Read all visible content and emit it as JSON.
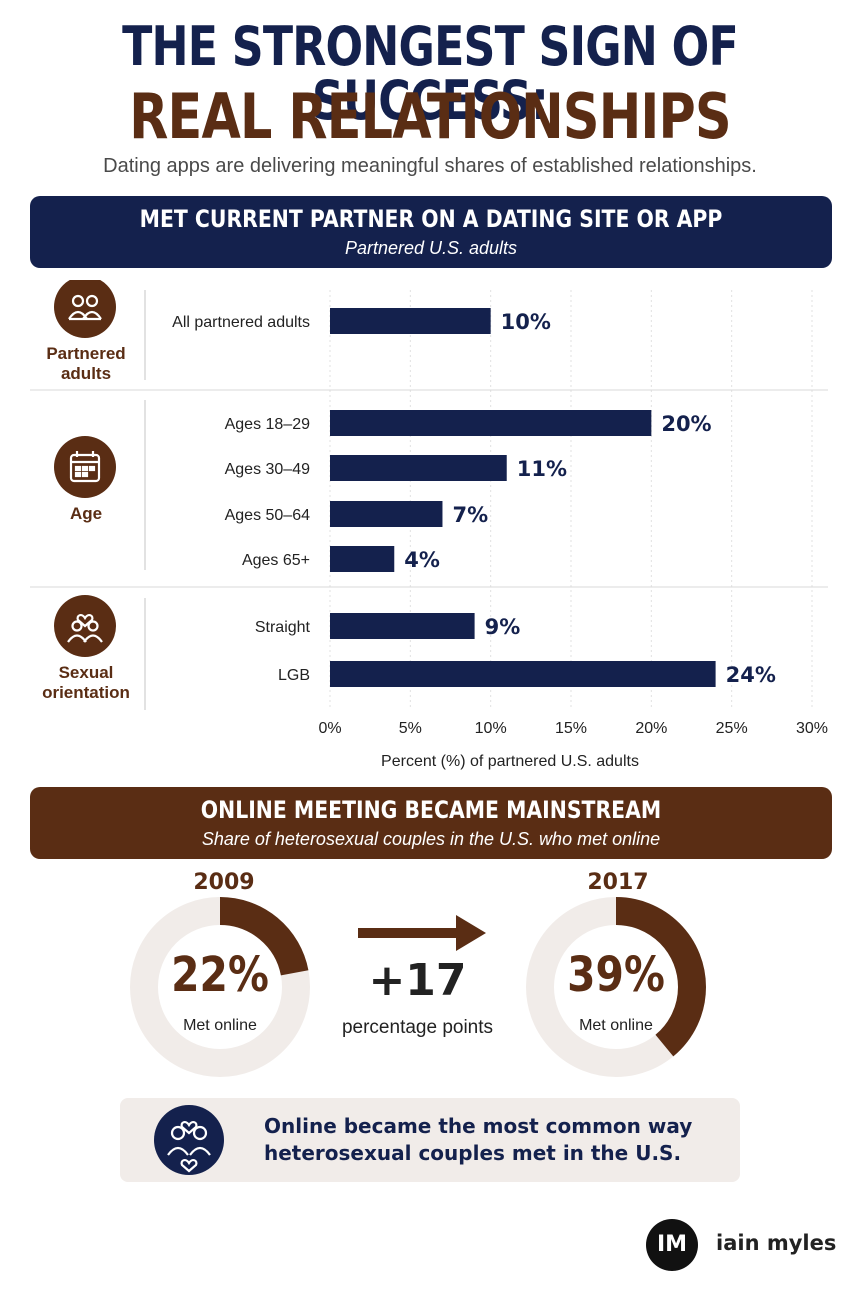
{
  "header": {
    "title_line1": "THE STRONGEST SIGN OF SUCCESS:",
    "title_line2": "REAL RELATIONSHIPS",
    "subtitle": "Dating apps are delivering meaningful shares of established relationships."
  },
  "section1": {
    "title": "MET CURRENT PARTNER ON A DATING SITE OR APP",
    "subtitle": "Partnered U.S. adults"
  },
  "chart_data": {
    "type": "bar",
    "orientation": "horizontal",
    "xlabel": "Percent (%) of partnered U.S. adults",
    "xlim": [
      0,
      30
    ],
    "xticks": [
      "0%",
      "5%",
      "10%",
      "15%",
      "20%",
      "25%",
      "30%"
    ],
    "grid": true,
    "groups": [
      {
        "name": "Partnered adults",
        "icon": "people-icon",
        "categories": [
          "All partnered adults"
        ],
        "values": [
          10
        ],
        "labels": [
          "10%"
        ]
      },
      {
        "name": "Age",
        "icon": "calendar-icon",
        "categories": [
          "Ages 18–29",
          "Ages 30–49",
          "Ages 50–64",
          "Ages 65+"
        ],
        "values": [
          20,
          11,
          7,
          4
        ],
        "labels": [
          "20%",
          "11%",
          "7%",
          "4%"
        ]
      },
      {
        "name": "Sexual orientation",
        "icon": "couple-heart-icon",
        "categories": [
          "Straight",
          "LGB"
        ],
        "values": [
          9,
          24
        ],
        "labels": [
          "9%",
          "24%"
        ]
      }
    ],
    "colors": {
      "bar": "#14214d",
      "accent": "#5a2d14"
    }
  },
  "section2": {
    "title": "ONLINE MEETING BECAME MAINSTREAM",
    "subtitle": "Share of heterosexual couples in the U.S. who met online",
    "donuts": [
      {
        "year": "2009",
        "value": 22,
        "label": "22%",
        "caption": "Met online"
      },
      {
        "year": "2017",
        "value": 39,
        "label": "39%",
        "caption": "Met online"
      }
    ],
    "change": {
      "value": "+17",
      "caption": "percentage points"
    },
    "callout": {
      "icon": "couple-hearts-icon",
      "text": "Online became the most common way heterosexual couples met in the U.S."
    }
  },
  "brand": {
    "logo": "IM",
    "name": "iain myles"
  }
}
